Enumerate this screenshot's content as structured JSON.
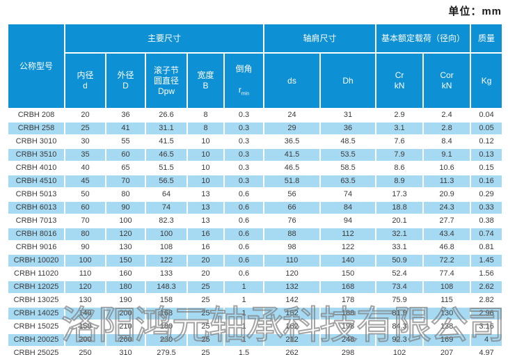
{
  "page": {
    "unit_label": "单位：mm"
  },
  "watermark": {
    "text": "洛阳鸿元轴承科技有限公司"
  },
  "colors": {
    "header_blue": "#0e90d5",
    "row_alt_blue": "#a6d9f2",
    "data_text": "#3a3a3a",
    "header_text": "#ffffff"
  },
  "table": {
    "group_headers": {
      "model": "公称型号",
      "main_dims": "主要尺寸",
      "shoulder_dims": "轴肩尺寸",
      "rated_load": "基本额定载荷（径向）",
      "mass": "质量"
    },
    "sub_headers": {
      "bore": "内径\nd",
      "outer": "外径\nD",
      "pitch": "滚子节\n圆直径\nDpw",
      "width": "宽度\nB",
      "chamfer_title": "倒角",
      "chamfer_symbol": "r",
      "chamfer_subscript": "min",
      "ds": "ds",
      "dh": "Dh",
      "cr": "Cr\nkN",
      "cor": "Cor\nkN",
      "kg": "Kg"
    },
    "rows": [
      [
        "CRBH 208",
        "20",
        "36",
        "26.6",
        "8",
        "0.3",
        "24",
        "31",
        "2.9",
        "2.4",
        "0.04"
      ],
      [
        "CRBH 258",
        "25",
        "41",
        "31.1",
        "8",
        "0.3",
        "29",
        "36",
        "3.1",
        "2.8",
        "0.05"
      ],
      [
        "CRBH 3010",
        "30",
        "55",
        "41.5",
        "10",
        "0.3",
        "36.5",
        "48.5",
        "7.6",
        "8.4",
        "0.12"
      ],
      [
        "CRBH 3510",
        "35",
        "60",
        "46.5",
        "10",
        "0.3",
        "41.5",
        "53.5",
        "7.9",
        "9.1",
        "0.13"
      ],
      [
        "CRBH 4010",
        "40",
        "65",
        "51.5",
        "10",
        "0.3",
        "46.5",
        "58.5",
        "8.6",
        "10.6",
        "0.15"
      ],
      [
        "CRBH 4510",
        "45",
        "70",
        "56.5",
        "10",
        "0.3",
        "51.8",
        "63.5",
        "8.9",
        "11.3",
        "0.16"
      ],
      [
        "CRBH 5013",
        "50",
        "80",
        "64",
        "13",
        "0.6",
        "56",
        "74",
        "17.3",
        "20.9",
        "0.29"
      ],
      [
        "CRBH 6013",
        "60",
        "90",
        "74",
        "13",
        "0.6",
        "66",
        "84",
        "18.8",
        "24.3",
        "0.33"
      ],
      [
        "CRBH 7013",
        "70",
        "100",
        "82.3",
        "13",
        "0.6",
        "76",
        "94",
        "20.1",
        "27.7",
        "0.38"
      ],
      [
        "CRBH 8016",
        "80",
        "120",
        "100",
        "16",
        "0.6",
        "88",
        "112",
        "32.1",
        "43.4",
        "0.74"
      ],
      [
        "CRBH 9016",
        "90",
        "130",
        "108",
        "16",
        "0.6",
        "98",
        "122",
        "33.1",
        "46.8",
        "0.81"
      ],
      [
        "CRBH 10020",
        "100",
        "150",
        "122",
        "20",
        "0.6",
        "110",
        "140",
        "50.9",
        "72.2",
        "1.45"
      ],
      [
        "CRBH 11020",
        "110",
        "160",
        "133",
        "20",
        "0.6",
        "120",
        "150",
        "52.4",
        "77.4",
        "1.56"
      ],
      [
        "CRBH 12025",
        "120",
        "180",
        "148.3",
        "25",
        "1",
        "132",
        "168",
        "73.4",
        "108",
        "2.62"
      ],
      [
        "CRBH 13025",
        "130",
        "190",
        "158",
        "25",
        "1",
        "142",
        "178",
        "75.9",
        "115",
        "2.82"
      ],
      [
        "CRBH 14025",
        "140",
        "200",
        "168",
        "25",
        "1",
        "152",
        "188",
        "81.9",
        "130",
        "2.96"
      ],
      [
        "CRBH 15025",
        "150",
        "210",
        "180",
        "25",
        "1",
        "162",
        "198",
        "84.3",
        "138",
        "3.16"
      ],
      [
        "CRBH 20025",
        "200",
        "260",
        "230",
        "25",
        "1",
        "212",
        "248",
        "92.3",
        "169",
        "4"
      ],
      [
        "CRBH 25025",
        "250",
        "310",
        "279.5",
        "25",
        "1.5",
        "262",
        "298",
        "102",
        "207",
        "4.97"
      ]
    ]
  }
}
